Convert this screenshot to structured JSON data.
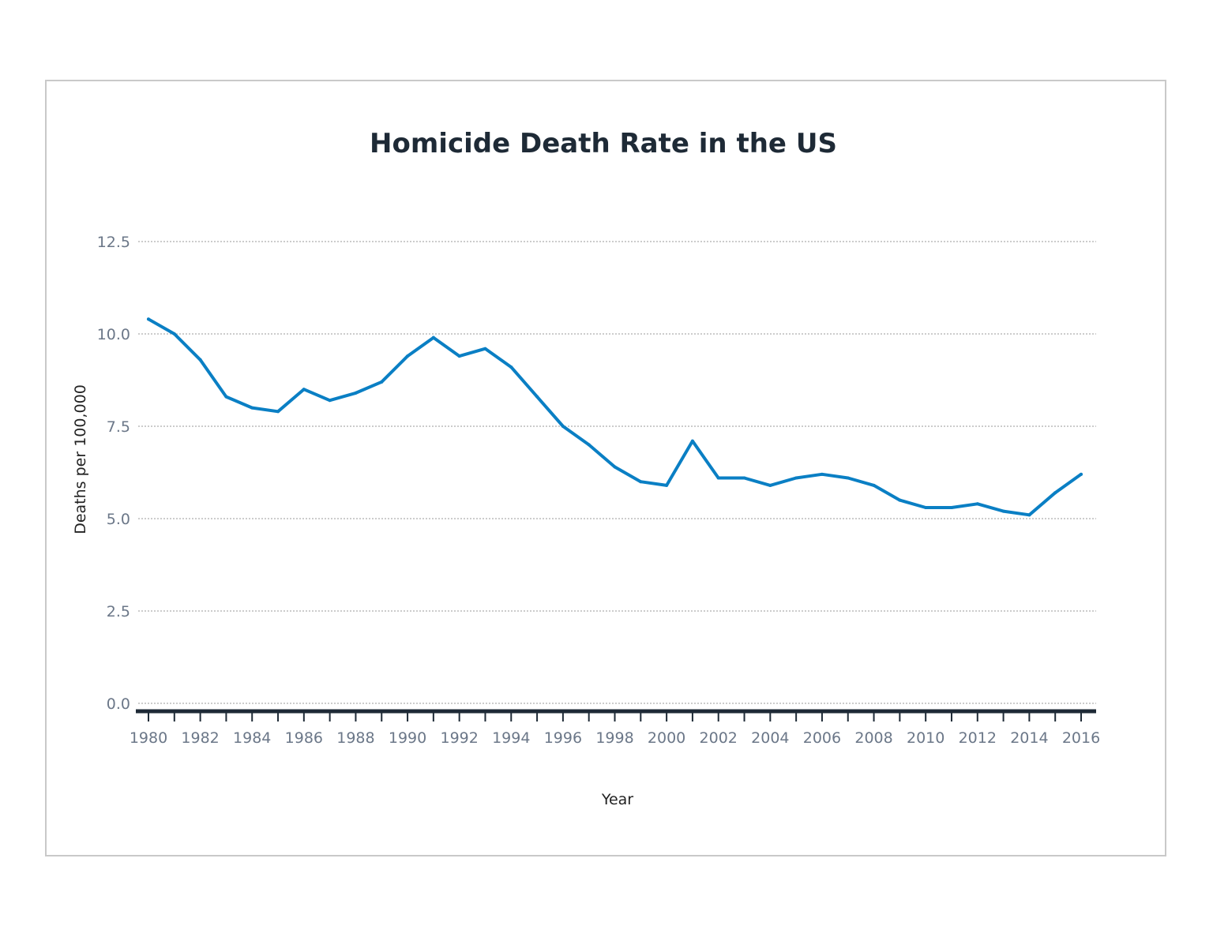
{
  "chart_data": {
    "type": "line",
    "title": "Homicide Death Rate in the US",
    "xlabel": "Year",
    "ylabel": "Deaths per 100,000",
    "xlim": [
      1980,
      2016
    ],
    "ylim": [
      0,
      12.5
    ],
    "yticks": [
      "0.0",
      "2.5",
      "5.0",
      "7.5",
      "10.0",
      "12.5"
    ],
    "xticks": [
      "1980",
      "1982",
      "1984",
      "1986",
      "1988",
      "1990",
      "1992",
      "1994",
      "1996",
      "1998",
      "2000",
      "2002",
      "2004",
      "2006",
      "2008",
      "2010",
      "2012",
      "2014",
      "2016"
    ],
    "grid": true,
    "legend": "none",
    "line_color": "#0a7fc4",
    "series": [
      {
        "x": [
          1980,
          1981,
          1982,
          1983,
          1984,
          1985,
          1986,
          1987,
          1988,
          1989,
          1990,
          1991,
          1992,
          1993,
          1994,
          1995,
          1996,
          1997,
          1998,
          1999,
          2000,
          2001,
          2002,
          2003,
          2004,
          2005,
          2006,
          2007,
          2008,
          2009,
          2010,
          2011,
          2012,
          2013,
          2014,
          2015,
          2016
        ],
        "values": [
          10.4,
          10.0,
          9.3,
          8.3,
          8.0,
          7.9,
          8.5,
          8.2,
          8.4,
          8.7,
          9.4,
          9.9,
          9.4,
          9.6,
          9.1,
          8.3,
          7.5,
          7.0,
          6.4,
          6.0,
          5.9,
          7.1,
          6.1,
          6.1,
          5.9,
          6.1,
          6.2,
          6.1,
          5.9,
          5.5,
          5.3,
          5.3,
          5.4,
          5.2,
          5.1,
          5.7,
          6.2
        ]
      }
    ]
  }
}
